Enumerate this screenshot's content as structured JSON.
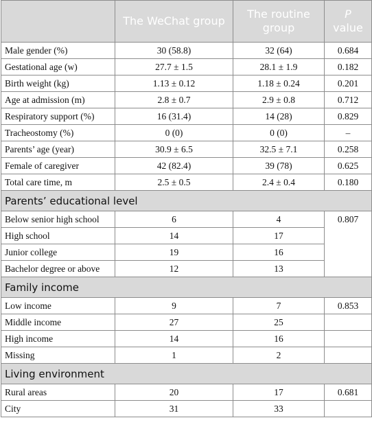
{
  "header": {
    "col1": "",
    "col2": "The WeChat group",
    "col3": "The routine group",
    "col4_italic": "P",
    "col4": "value"
  },
  "general": [
    {
      "label": "Male gender (%)",
      "wechat": "30 (58.8)",
      "routine": "32 (64)",
      "p": "0.684"
    },
    {
      "label": "Gestational age (w)",
      "wechat": "27.7 ± 1.5",
      "routine": "28.1 ± 1.9",
      "p": "0.182"
    },
    {
      "label": "Birth weight (kg)",
      "wechat": "1.13 ± 0.12",
      "routine": "1.18 ± 0.24",
      "p": "0.201"
    },
    {
      "label": "Age at admission (m)",
      "wechat": "2.8 ± 0.7",
      "routine": "2.9 ± 0.8",
      "p": "0.712"
    },
    {
      "label": "Respiratory support (%)",
      "wechat": "16 (31.4)",
      "routine": "14 (28)",
      "p": "0.829"
    },
    {
      "label": "Tracheostomy (%)",
      "wechat": "0 (0)",
      "routine": "0 (0)",
      "p": "–"
    },
    {
      "label": "Parents’ age (year)",
      "wechat": "30.9 ± 6.5",
      "routine": "32.5 ± 7.1",
      "p": "0.258"
    },
    {
      "label": "Female of caregiver",
      "wechat": "42 (82.4)",
      "routine": "39 (78)",
      "p": "0.625"
    },
    {
      "label": "Total care time, m",
      "wechat": "2.5 ± 0.5",
      "routine": "2.4 ± 0.4",
      "p": "0.180"
    }
  ],
  "education": {
    "title": "Parents’ educational level",
    "p": "0.807",
    "rows": [
      {
        "label": "Below senior high school",
        "wechat": "6",
        "routine": "4"
      },
      {
        "label": "High school",
        "wechat": "14",
        "routine": "17"
      },
      {
        "label": "Junior college",
        "wechat": "19",
        "routine": "16"
      },
      {
        "label": "Bachelor degree or above",
        "wechat": "12",
        "routine": "13"
      }
    ]
  },
  "income": {
    "title": "Family income",
    "rows": [
      {
        "label": "Low income",
        "wechat": "9",
        "routine": "7",
        "p": "0.853"
      },
      {
        "label": "Middle income",
        "wechat": "27",
        "routine": "25",
        "p": ""
      },
      {
        "label": "High income",
        "wechat": "14",
        "routine": "16",
        "p": ""
      },
      {
        "label": "Missing",
        "wechat": "1",
        "routine": "2",
        "p": ""
      }
    ]
  },
  "living": {
    "title": "Living environment",
    "rows": [
      {
        "label": "Rural areas",
        "wechat": "20",
        "routine": "17",
        "p": "0.681"
      },
      {
        "label": "City",
        "wechat": "31",
        "routine": "33",
        "p": ""
      }
    ]
  }
}
